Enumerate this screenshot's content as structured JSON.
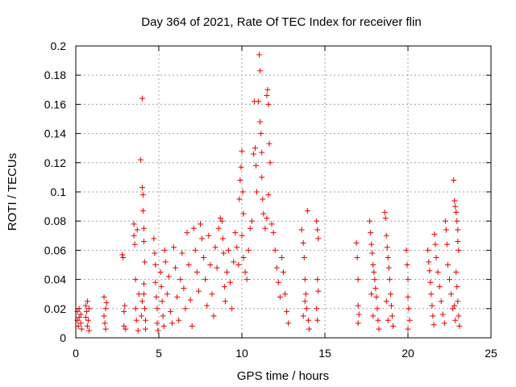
{
  "chart_data": {
    "type": "scatter",
    "title": "Day 364 of 2021, Rate Of TEC Index for receiver flin",
    "xlabel": "GPS time / hours",
    "ylabel": "ROTI / TECUs",
    "xlim": [
      0,
      25
    ],
    "ylim": [
      0,
      0.2
    ],
    "xticks": [
      0,
      5,
      10,
      15,
      20,
      25
    ],
    "yticks": [
      0,
      0.02,
      0.04,
      0.06,
      0.08,
      0.1,
      0.12,
      0.14,
      0.16,
      0.18,
      0.2
    ],
    "xtick_labels": [
      "0",
      "5",
      "10",
      "15",
      "20",
      "25"
    ],
    "ytick_labels": [
      "0",
      "0.02",
      "0.04",
      "0.06",
      "0.08",
      "0.1",
      "0.12",
      "0.14",
      "0.16",
      "0.18",
      "0.2"
    ],
    "grid": true,
    "marker": "+",
    "color": "#e80000",
    "series": [
      {
        "points": [
          [
            0.1,
            0.012
          ],
          [
            0.1,
            0.018
          ],
          [
            0.15,
            0.008
          ],
          [
            0.2,
            0.02
          ],
          [
            0.2,
            0.014
          ],
          [
            0.3,
            0.01
          ],
          [
            0.3,
            0.016
          ],
          [
            0.35,
            0.006
          ],
          [
            0.6,
            0.022
          ],
          [
            0.6,
            0.014
          ],
          [
            0.65,
            0.018
          ],
          [
            0.7,
            0.008
          ],
          [
            0.7,
            0.025
          ],
          [
            0.75,
            0.012
          ],
          [
            0.8,
            0.02
          ],
          [
            0.8,
            0.005
          ],
          [
            1.7,
            0.015
          ],
          [
            1.7,
            0.028
          ],
          [
            1.75,
            0.01
          ],
          [
            1.8,
            0.02
          ],
          [
            1.8,
            0.006
          ],
          [
            1.85,
            0.024
          ],
          [
            2.8,
            0.057
          ],
          [
            2.85,
            0.055
          ],
          [
            2.9,
            0.018
          ],
          [
            2.9,
            0.008
          ],
          [
            2.95,
            0.022
          ],
          [
            3.0,
            0.006
          ],
          [
            3.5,
            0.078
          ],
          [
            3.5,
            0.07
          ],
          [
            3.55,
            0.064
          ],
          [
            3.6,
            0.04
          ],
          [
            3.6,
            0.02
          ],
          [
            3.65,
            0.012
          ],
          [
            3.7,
            0.074
          ],
          [
            3.75,
            0.005
          ],
          [
            3.8,
            0.03
          ],
          [
            3.9,
            0.122
          ],
          [
            4.0,
            0.164
          ],
          [
            4.0,
            0.103
          ],
          [
            4.05,
            0.098
          ],
          [
            4.05,
            0.087
          ],
          [
            4.1,
            0.075
          ],
          [
            4.1,
            0.066
          ],
          [
            4.15,
            0.052
          ],
          [
            4.1,
            0.03
          ],
          [
            4.15,
            0.02
          ],
          [
            4.2,
            0.012
          ],
          [
            4.2,
            0.006
          ],
          [
            4.1,
            0.037
          ],
          [
            4.0,
            0.025
          ],
          [
            3.95,
            0.015
          ],
          [
            4.7,
            0.068
          ],
          [
            4.75,
            0.058
          ],
          [
            4.8,
            0.05
          ],
          [
            4.8,
            0.038
          ],
          [
            4.85,
            0.028
          ],
          [
            4.9,
            0.02
          ],
          [
            4.9,
            0.01
          ],
          [
            4.95,
            0.005
          ],
          [
            5.1,
            0.045
          ],
          [
            5.15,
            0.035
          ],
          [
            5.2,
            0.025
          ],
          [
            5.25,
            0.015
          ],
          [
            5.3,
            0.008
          ],
          [
            5.35,
            0.06
          ],
          [
            5.4,
            0.052
          ],
          [
            5.5,
            0.03
          ],
          [
            5.6,
            0.042
          ],
          [
            5.7,
            0.018
          ],
          [
            5.8,
            0.01
          ],
          [
            5.9,
            0.062
          ],
          [
            6.0,
            0.048
          ],
          [
            6.1,
            0.028
          ],
          [
            6.2,
            0.012
          ],
          [
            6.3,
            0.04
          ],
          [
            6.4,
            0.058
          ],
          [
            6.5,
            0.034
          ],
          [
            6.6,
            0.02
          ],
          [
            6.7,
            0.072
          ],
          [
            6.8,
            0.05
          ],
          [
            6.9,
            0.026
          ],
          [
            7.0,
            0.008
          ],
          [
            7.1,
            0.075
          ],
          [
            7.2,
            0.06
          ],
          [
            7.3,
            0.045
          ],
          [
            7.4,
            0.032
          ],
          [
            7.5,
            0.078
          ],
          [
            7.6,
            0.068
          ],
          [
            7.7,
            0.055
          ],
          [
            7.8,
            0.04
          ],
          [
            7.9,
            0.022
          ],
          [
            8.0,
            0.07
          ],
          [
            8.1,
            0.05
          ],
          [
            8.2,
            0.03
          ],
          [
            8.3,
            0.015
          ],
          [
            8.4,
            0.062
          ],
          [
            8.5,
            0.048
          ],
          [
            8.6,
            0.075
          ],
          [
            8.7,
            0.082
          ],
          [
            8.8,
            0.08
          ],
          [
            8.85,
            0.068
          ],
          [
            8.9,
            0.058
          ],
          [
            8.95,
            0.035
          ],
          [
            9.0,
            0.025
          ],
          [
            9.1,
            0.045
          ],
          [
            9.2,
            0.06
          ],
          [
            9.3,
            0.038
          ],
          [
            9.4,
            0.02
          ],
          [
            9.5,
            0.052
          ],
          [
            9.6,
            0.072
          ],
          [
            9.7,
            0.062
          ],
          [
            9.8,
            0.05
          ],
          [
            9.85,
            0.095
          ],
          [
            9.9,
            0.108
          ],
          [
            9.95,
            0.117
          ],
          [
            10.0,
            0.128
          ],
          [
            10.05,
            0.1
          ],
          [
            10.1,
            0.085
          ],
          [
            10.0,
            0.07
          ],
          [
            10.1,
            0.055
          ],
          [
            10.2,
            0.045
          ],
          [
            10.3,
            0.04
          ],
          [
            10.4,
            0.06
          ],
          [
            10.5,
            0.075
          ],
          [
            10.6,
            0.08
          ],
          [
            10.7,
            0.126
          ],
          [
            10.75,
            0.162
          ],
          [
            10.8,
            0.13
          ],
          [
            10.85,
            0.118
          ],
          [
            10.9,
            0.1
          ],
          [
            11.0,
            0.162
          ],
          [
            11.05,
            0.194
          ],
          [
            11.1,
            0.183
          ],
          [
            11.1,
            0.148
          ],
          [
            11.15,
            0.14
          ],
          [
            11.2,
            0.127
          ],
          [
            11.2,
            0.11
          ],
          [
            11.25,
            0.095
          ],
          [
            11.3,
            0.085
          ],
          [
            11.4,
            0.075
          ],
          [
            11.5,
            0.166
          ],
          [
            11.55,
            0.17
          ],
          [
            11.6,
            0.16
          ],
          [
            11.65,
            0.133
          ],
          [
            11.7,
            0.12
          ],
          [
            11.6,
            0.098
          ],
          [
            11.5,
            0.082
          ],
          [
            11.8,
            0.078
          ],
          [
            11.9,
            0.072
          ],
          [
            12.0,
            0.06
          ],
          [
            12.1,
            0.048
          ],
          [
            12.2,
            0.038
          ],
          [
            12.3,
            0.028
          ],
          [
            12.4,
            0.055
          ],
          [
            12.5,
            0.045
          ],
          [
            12.6,
            0.03
          ],
          [
            12.7,
            0.018
          ],
          [
            12.8,
            0.01
          ],
          [
            13.6,
            0.074
          ],
          [
            13.7,
            0.065
          ],
          [
            13.75,
            0.055
          ],
          [
            13.8,
            0.04
          ],
          [
            13.85,
            0.03
          ],
          [
            13.9,
            0.02
          ],
          [
            13.95,
            0.087
          ],
          [
            14.0,
            0.012
          ],
          [
            14.05,
            0.006
          ],
          [
            13.7,
            0.015
          ],
          [
            13.8,
            0.025
          ],
          [
            14.5,
            0.08
          ],
          [
            14.55,
            0.074
          ],
          [
            14.6,
            0.068
          ],
          [
            14.55,
            0.04
          ],
          [
            14.6,
            0.032
          ],
          [
            14.5,
            0.02
          ],
          [
            14.55,
            0.012
          ],
          [
            16.9,
            0.065
          ],
          [
            16.95,
            0.055
          ],
          [
            17.0,
            0.04
          ],
          [
            17.0,
            0.022
          ],
          [
            17.05,
            0.016
          ],
          [
            17.0,
            0.01
          ],
          [
            17.7,
            0.08
          ],
          [
            17.75,
            0.072
          ],
          [
            17.8,
            0.064
          ],
          [
            17.85,
            0.058
          ],
          [
            17.9,
            0.05
          ],
          [
            17.95,
            0.045
          ],
          [
            18.0,
            0.04
          ],
          [
            18.05,
            0.034
          ],
          [
            18.1,
            0.028
          ],
          [
            18.15,
            0.02
          ],
          [
            18.2,
            0.012
          ],
          [
            18.25,
            0.006
          ],
          [
            17.8,
            0.03
          ],
          [
            17.9,
            0.015
          ],
          [
            18.6,
            0.086
          ],
          [
            18.65,
            0.082
          ],
          [
            18.7,
            0.07
          ],
          [
            18.75,
            0.062
          ],
          [
            18.8,
            0.055
          ],
          [
            18.85,
            0.048
          ],
          [
            18.9,
            0.04
          ],
          [
            18.95,
            0.03
          ],
          [
            19.0,
            0.022
          ],
          [
            19.05,
            0.015
          ],
          [
            19.1,
            0.008
          ],
          [
            18.7,
            0.025
          ],
          [
            18.8,
            0.012
          ],
          [
            19.9,
            0.06
          ],
          [
            19.95,
            0.05
          ],
          [
            20.0,
            0.04
          ],
          [
            20.0,
            0.028
          ],
          [
            20.05,
            0.02
          ],
          [
            20.1,
            0.012
          ],
          [
            20.0,
            0.006
          ],
          [
            21.2,
            0.06
          ],
          [
            21.25,
            0.052
          ],
          [
            21.3,
            0.046
          ],
          [
            21.35,
            0.038
          ],
          [
            21.4,
            0.03
          ],
          [
            21.45,
            0.022
          ],
          [
            21.5,
            0.015
          ],
          [
            21.55,
            0.009
          ],
          [
            21.6,
            0.071
          ],
          [
            21.65,
            0.064
          ],
          [
            21.7,
            0.055
          ],
          [
            21.8,
            0.045
          ],
          [
            21.9,
            0.035
          ],
          [
            22.0,
            0.025
          ],
          [
            22.1,
            0.016
          ],
          [
            22.2,
            0.01
          ],
          [
            22.25,
            0.08
          ],
          [
            22.3,
            0.074
          ],
          [
            22.35,
            0.064
          ],
          [
            22.4,
            0.05
          ],
          [
            22.5,
            0.04
          ],
          [
            22.6,
            0.03
          ],
          [
            22.7,
            0.02
          ],
          [
            22.75,
            0.108
          ],
          [
            22.8,
            0.094
          ],
          [
            22.85,
            0.09
          ],
          [
            22.9,
            0.086
          ],
          [
            22.95,
            0.08
          ],
          [
            23.0,
            0.074
          ],
          [
            23.0,
            0.066
          ],
          [
            23.05,
            0.06
          ],
          [
            22.9,
            0.045
          ],
          [
            22.95,
            0.035
          ],
          [
            23.0,
            0.025
          ],
          [
            23.05,
            0.015
          ],
          [
            23.1,
            0.008
          ],
          [
            22.8,
            0.022
          ],
          [
            22.85,
            0.012
          ]
        ]
      }
    ]
  }
}
